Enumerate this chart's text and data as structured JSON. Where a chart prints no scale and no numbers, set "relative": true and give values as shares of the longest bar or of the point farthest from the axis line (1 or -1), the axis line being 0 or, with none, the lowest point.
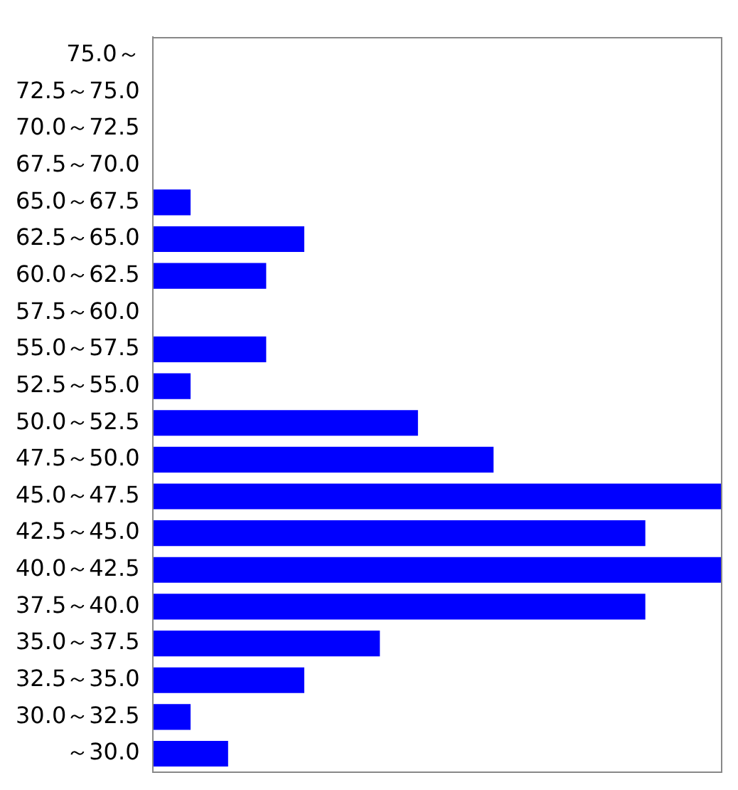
{
  "chart_data": {
    "type": "bar",
    "orientation": "horizontal",
    "relative": true,
    "categories": [
      "75.0～",
      "72.5～75.0",
      "70.0～72.5",
      "67.5～70.0",
      "65.0～67.5",
      "62.5～65.0",
      "60.0～62.5",
      "57.5～60.0",
      "55.0～57.5",
      "52.5～55.0",
      "50.0～52.5",
      "47.5～50.0",
      "45.0～47.5",
      "42.5～45.0",
      "40.0～42.5",
      "37.5～40.0",
      "35.0～37.5",
      "32.5～35.0",
      "30.0～32.5",
      "～30.0"
    ],
    "values": [
      0,
      0,
      0,
      0,
      0.067,
      0.267,
      0.2,
      0,
      0.2,
      0.067,
      0.467,
      0.6,
      1,
      0.867,
      1,
      0.867,
      0.4,
      0.267,
      0.067,
      0.133
    ],
    "color": "#0000ff"
  }
}
